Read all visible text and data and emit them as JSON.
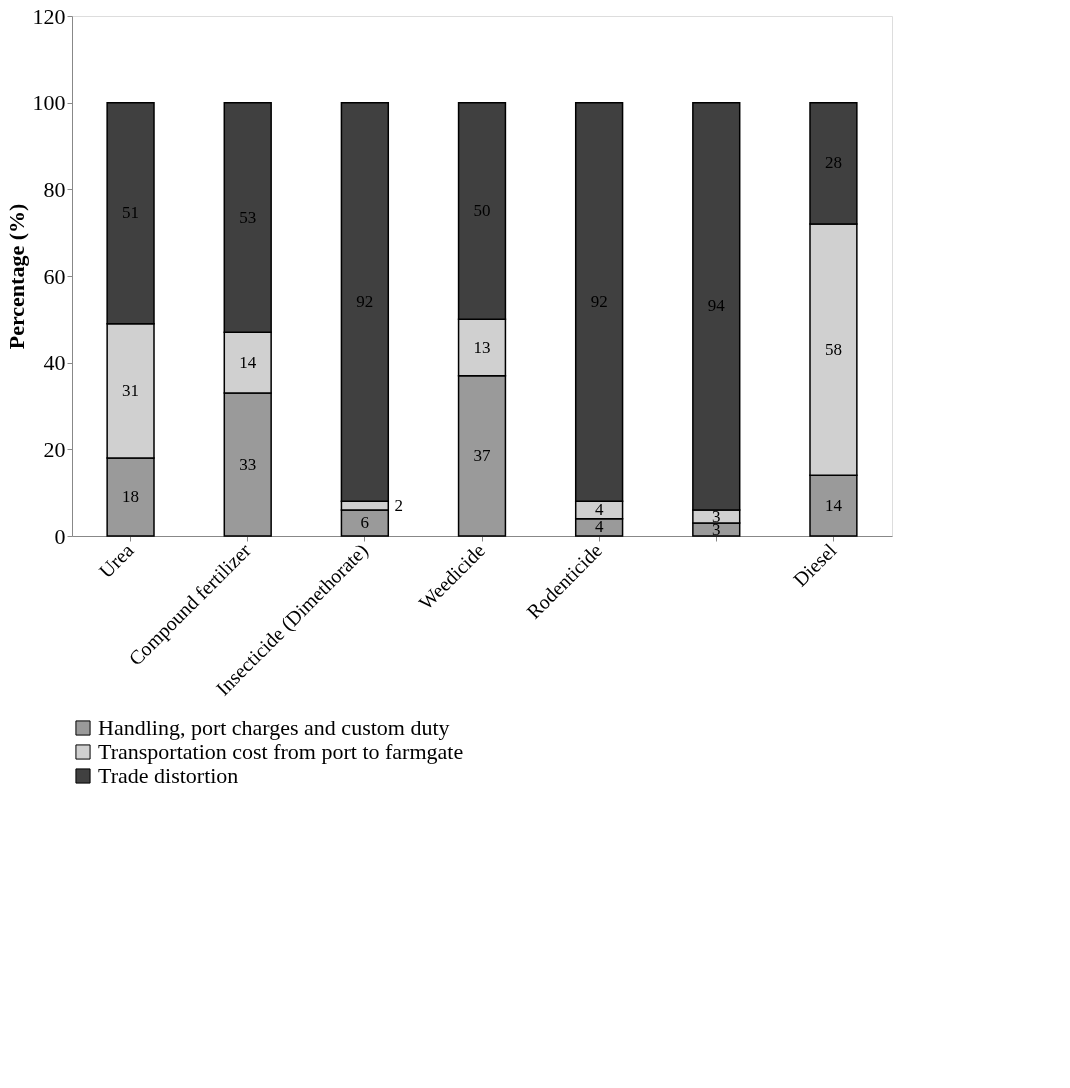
{
  "chart_data": {
    "type": "bar",
    "stacked": true,
    "ylabel": "Percentage (%)",
    "categories": [
      "Urea",
      "Compound fertilizer",
      "Insecticide (Dimethorate)",
      "Weedicide",
      "Rodenticide",
      null,
      "Diesel"
    ],
    "series": [
      {
        "name": "Handling, port charges and custom duty",
        "color": "#9a9a9a",
        "values": [
          18,
          33,
          6,
          37,
          4,
          3,
          14
        ],
        "value_labels": [
          "18",
          "33",
          "6",
          "37",
          "4",
          "3",
          "14"
        ]
      },
      {
        "name": "Transportation cost from port to farmgate",
        "color": "#d0d0d0",
        "values": [
          31,
          14,
          2,
          13,
          4,
          3,
          58
        ],
        "value_labels": [
          "31",
          "14",
          null,
          "13",
          "4",
          "3",
          "58"
        ]
      },
      {
        "name": "Trade distortion",
        "color": "#404040",
        "values": [
          51,
          53,
          92,
          50,
          92,
          94,
          28
        ],
        "value_labels": [
          "51",
          "53",
          "92",
          "50",
          "92",
          "94",
          "28"
        ]
      }
    ],
    "annotations": [
      {
        "text": "2",
        "x": "Insecticide (Dimethorate)",
        "y": 7
      }
    ],
    "ylim": [
      0,
      120
    ],
    "yticks": [
      0,
      20,
      40,
      60,
      80,
      100,
      120
    ],
    "grid": false,
    "legend": "bottom"
  }
}
